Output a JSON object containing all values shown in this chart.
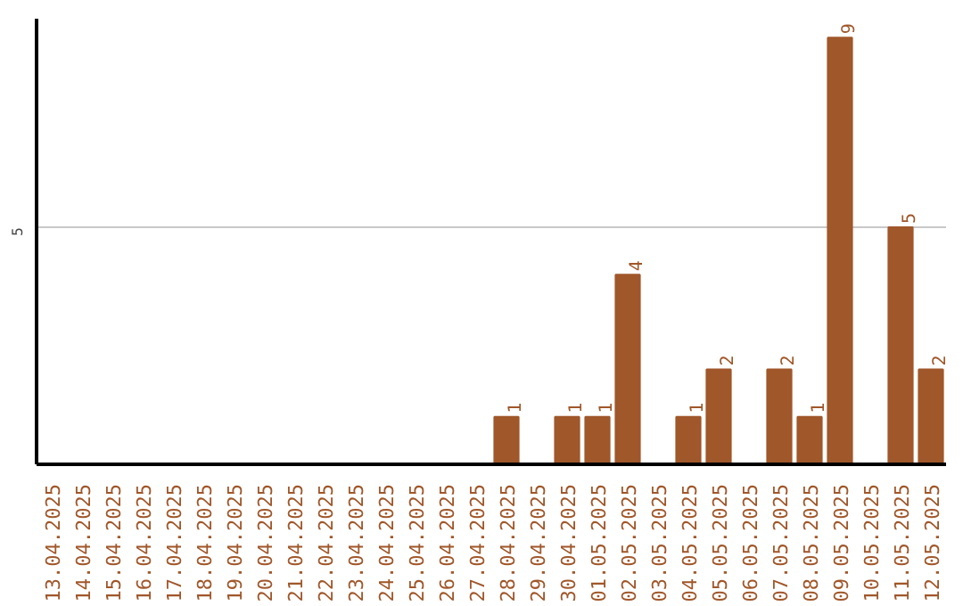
{
  "chart_data": {
    "type": "bar",
    "categories": [
      "13.04.2025",
      "14.04.2025",
      "15.04.2025",
      "16.04.2025",
      "17.04.2025",
      "18.04.2025",
      "19.04.2025",
      "20.04.2025",
      "21.04.2025",
      "22.04.2025",
      "23.04.2025",
      "24.04.2025",
      "25.04.2025",
      "26.04.2025",
      "27.04.2025",
      "28.04.2025",
      "29.04.2025",
      "30.04.2025",
      "01.05.2025",
      "02.05.2025",
      "03.05.2025",
      "04.05.2025",
      "05.05.2025",
      "06.05.2025",
      "07.05.2025",
      "08.05.2025",
      "09.05.2025",
      "10.05.2025",
      "11.05.2025",
      "12.05.2025"
    ],
    "values": [
      null,
      null,
      null,
      null,
      null,
      null,
      null,
      null,
      null,
      null,
      null,
      null,
      null,
      null,
      null,
      1,
      null,
      1,
      1,
      4,
      null,
      1,
      2,
      null,
      2,
      1,
      9,
      null,
      5,
      2
    ],
    "color": "#a0572a",
    "ylim": [
      0,
      9.4
    ],
    "yticks": [
      5
    ],
    "grid": "y",
    "data_labels": true
  }
}
